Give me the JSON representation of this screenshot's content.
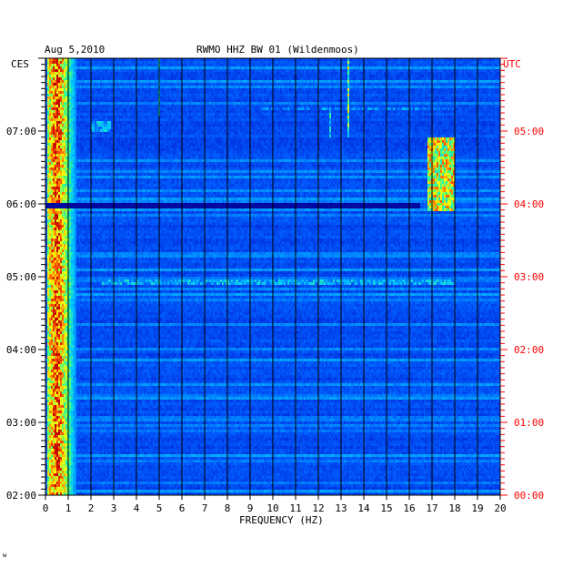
{
  "header": {
    "date": "Aug 5,2010",
    "station": "RWMO HHZ BW 01 (Wildenmoos)"
  },
  "footer": {
    "mark": "w"
  },
  "chart_data": {
    "type": "heatmap",
    "xlabel": "FREQUENCY (HZ)",
    "left_axis_label": "CES",
    "right_axis_label": "UTC",
    "xlim": [
      0,
      20
    ],
    "x_ticks": [
      "0",
      "1",
      "2",
      "3",
      "4",
      "5",
      "6",
      "7",
      "8",
      "9",
      "10",
      "11",
      "12",
      "13",
      "14",
      "15",
      "16",
      "17",
      "18",
      "19",
      "20"
    ],
    "left_time_range": [
      "02:00",
      "08:00"
    ],
    "right_time_range": [
      "00:00",
      "06:00"
    ],
    "left_ticks": [
      {
        "hour": 7,
        "label": "07:00"
      },
      {
        "hour": 6,
        "label": "06:00"
      },
      {
        "hour": 5,
        "label": "05:00"
      },
      {
        "hour": 4,
        "label": "04:00"
      },
      {
        "hour": 3,
        "label": "03:00"
      },
      {
        "hour": 2,
        "label": "02:00"
      }
    ],
    "right_ticks": [
      {
        "hour": 5,
        "label": "05:00"
      },
      {
        "hour": 4,
        "label": "04:00"
      },
      {
        "hour": 3,
        "label": "03:00"
      },
      {
        "hour": 2,
        "label": "02:00"
      },
      {
        "hour": 1,
        "label": "01:00"
      },
      {
        "hour": 0,
        "label": "00:00"
      }
    ],
    "vertical_grid": true,
    "colormap": [
      "#00006a",
      "#0010c8",
      "#0060ff",
      "#00c8ff",
      "#40ff80",
      "#ffff00",
      "#ff6000",
      "#c00000"
    ],
    "features": [
      {
        "name": "low-frequency noise band",
        "freq_range": [
          0.1,
          1.4
        ],
        "time_range": [
          2.0,
          8.0
        ],
        "intensity": 0.75
      },
      {
        "name": "broadband line",
        "freq_range": [
          2.5,
          18.0
        ],
        "time": 4.92,
        "intensity": 0.45
      },
      {
        "name": "broadband line",
        "freq_range": [
          9.5,
          18.0
        ],
        "time": 7.3,
        "intensity": 0.38
      },
      {
        "name": "transient",
        "freq_range": [
          16.8,
          18.0
        ],
        "time_range": [
          5.9,
          6.9
        ],
        "intensity": 0.8
      },
      {
        "name": "dark gap",
        "freq_range": [
          0,
          16.5
        ],
        "time_range": [
          5.95,
          6.03
        ],
        "intensity": 0.0
      },
      {
        "name": "vertical line",
        "freq": 13.3,
        "time_range": [
          6.9,
          8.0
        ],
        "intensity": 0.7
      },
      {
        "name": "vertical line",
        "freq": 5.0,
        "time_range": [
          7.2,
          8.0
        ],
        "intensity": 0.5
      },
      {
        "name": "vertical line",
        "freq": 12.5,
        "time_range": [
          6.9,
          7.3
        ],
        "intensity": 0.5
      },
      {
        "name": "patch",
        "freq_range": [
          2.0,
          2.9
        ],
        "time_range": [
          7.0,
          7.15
        ],
        "intensity": 0.45
      }
    ]
  }
}
